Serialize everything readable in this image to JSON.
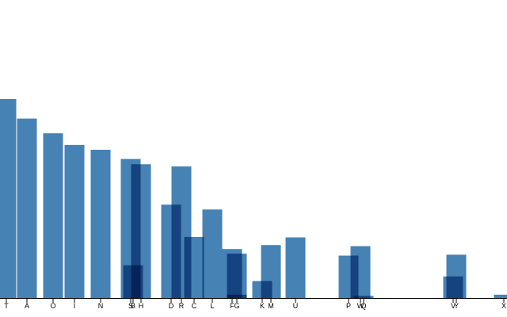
{
  "chart_data": {
    "type": "bar",
    "categories": [
      "T",
      "A",
      "O",
      "I",
      "N",
      "S",
      "B",
      "H",
      "D",
      "R",
      "C",
      "L",
      "F",
      "G",
      null,
      "K",
      "M",
      "U",
      "P",
      "W",
      "Q",
      "V",
      "Y",
      "X"
    ],
    "x": [
      8,
      34,
      67,
      94,
      127,
      165,
      168,
      178,
      216,
      229,
      245,
      268,
      293,
      299,
      299,
      331,
      342,
      373,
      440,
      455,
      459,
      572,
      576,
      636
    ],
    "values": [
      9.06,
      8.17,
      7.5,
      6.97,
      6.75,
      6.33,
      1.49,
      6.09,
      4.25,
      5.99,
      2.78,
      4.03,
      2.23,
      2.02,
      0.15,
      0.77,
      2.41,
      2.76,
      1.93,
      2.36,
      0.095,
      0.98,
      1.97,
      0.15
    ],
    "xlim": [
      0,
      640
    ],
    "ylim": [
      0,
      13.57
    ],
    "color": "#4682b4"
  }
}
